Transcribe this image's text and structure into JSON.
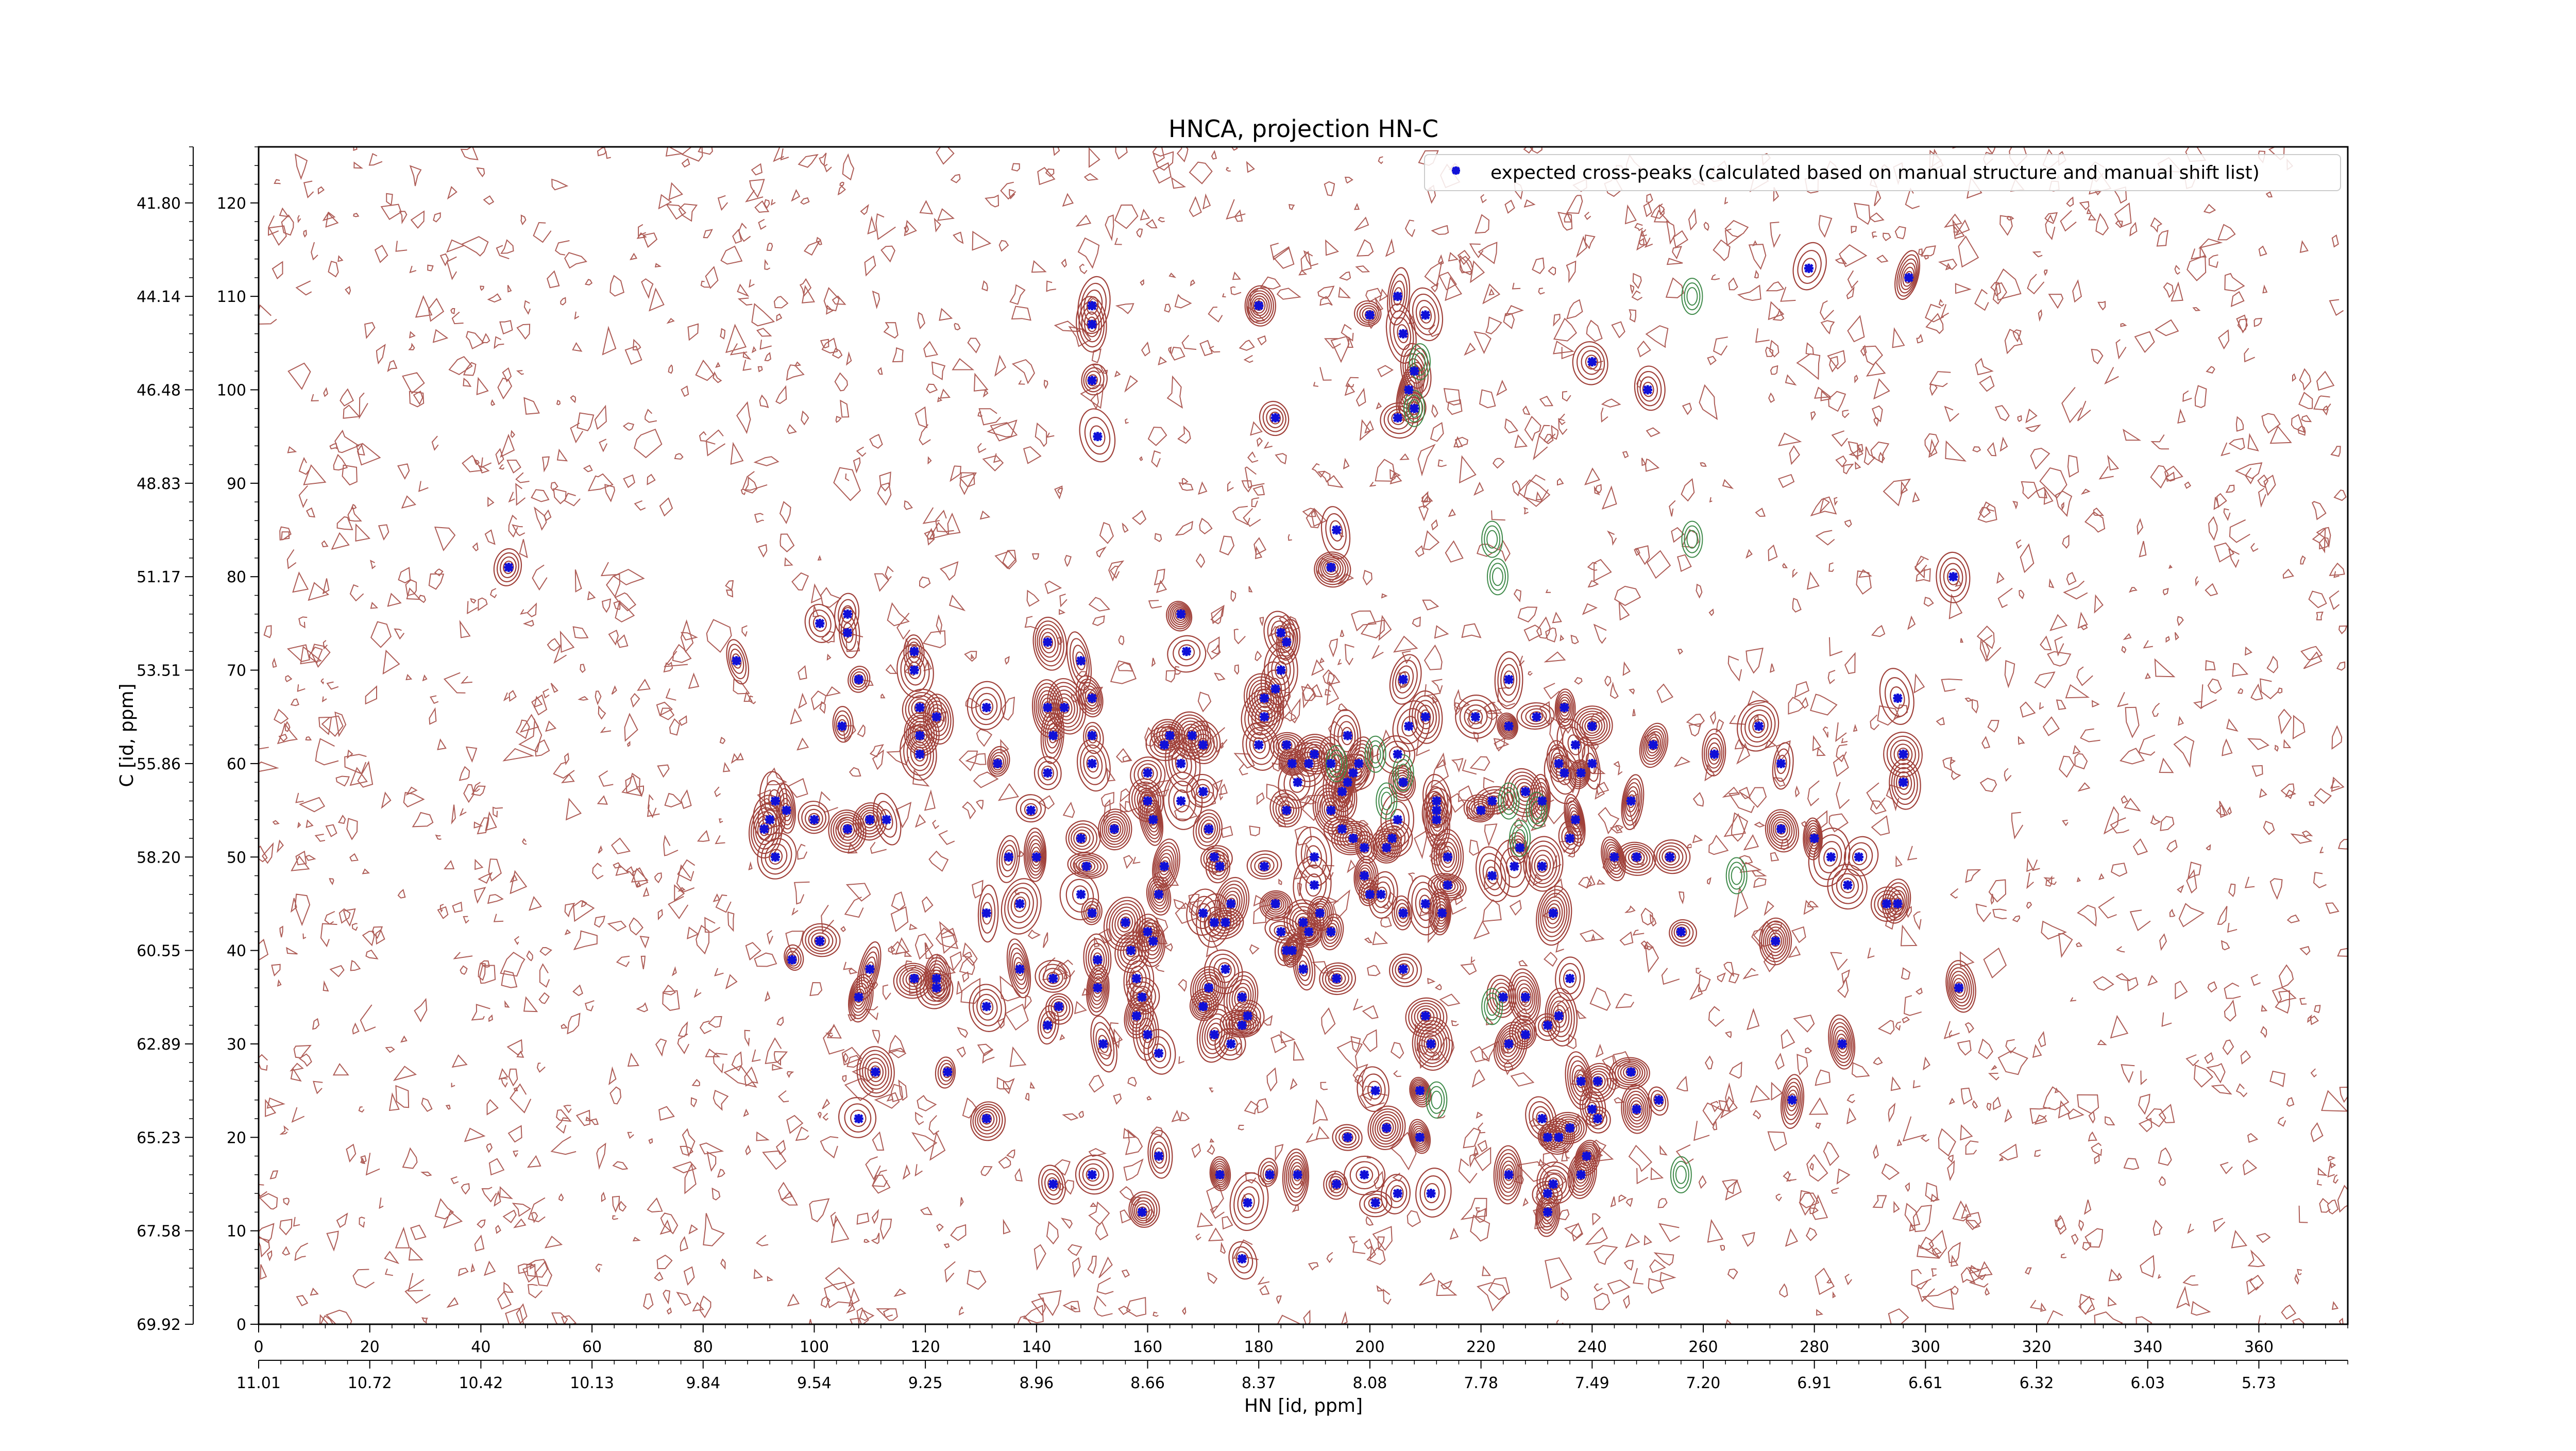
{
  "chart_data": {
    "type": "scatter",
    "title": "HNCA, projection HN-C",
    "xlabel": "HN [id, ppm]",
    "ylabel": "C [id, ppm]",
    "x_index_ticks": [
      "0",
      "20",
      "40",
      "60",
      "80",
      "100",
      "120",
      "140",
      "160",
      "180",
      "200",
      "220",
      "240",
      "260",
      "280",
      "300",
      "320",
      "340",
      "360"
    ],
    "x_ppm_ticks": [
      "11.01",
      "10.72",
      "10.42",
      "10.13",
      "9.84",
      "9.54",
      "9.25",
      "8.96",
      "8.66",
      "8.37",
      "8.08",
      "7.78",
      "7.49",
      "7.20",
      "6.91",
      "6.61",
      "6.32",
      "6.03",
      "5.73"
    ],
    "y_index_ticks": [
      "0",
      "10",
      "20",
      "30",
      "40",
      "50",
      "60",
      "70",
      "80",
      "90",
      "100",
      "110",
      "120"
    ],
    "y_ppm_ticks": [
      "69.92",
      "67.58",
      "65.23",
      "62.89",
      "60.55",
      "58.20",
      "55.86",
      "53.51",
      "51.17",
      "48.83",
      "46.48",
      "44.14",
      "41.80"
    ],
    "xlim": [
      0,
      376
    ],
    "ylim": [
      0,
      126
    ],
    "legend": {
      "label": "expected cross-peaks (calculated based on manual structure and manual shift list)",
      "position": "top-right"
    },
    "contour_colors": {
      "positive": "#a0413a",
      "negative": "#3f8a4a"
    },
    "marker_color": "#1010d8",
    "series": [
      {
        "name": "expected cross-peaks (calculated based on manual structure and manual shift list)",
        "points": [
          [
            45,
            81
          ],
          [
            86,
            71
          ],
          [
            91,
            53
          ],
          [
            92,
            54
          ],
          [
            93,
            56
          ],
          [
            95,
            55
          ],
          [
            93,
            50
          ],
          [
            100,
            54
          ],
          [
            96,
            39
          ],
          [
            101,
            41
          ],
          [
            101,
            75
          ],
          [
            106,
            76
          ],
          [
            106,
            74
          ],
          [
            108,
            69
          ],
          [
            105,
            64
          ],
          [
            106,
            53
          ],
          [
            110,
            54
          ],
          [
            113,
            54
          ],
          [
            110,
            38
          ],
          [
            108,
            35
          ],
          [
            111,
            27
          ],
          [
            108,
            22
          ],
          [
            118,
            72
          ],
          [
            118,
            70
          ],
          [
            119,
            66
          ],
          [
            119,
            63
          ],
          [
            119,
            61
          ],
          [
            118,
            37
          ],
          [
            122,
            37
          ],
          [
            122,
            36
          ],
          [
            124,
            27
          ],
          [
            122,
            65
          ],
          [
            131,
            66
          ],
          [
            133,
            60
          ],
          [
            131,
            44
          ],
          [
            135,
            50
          ],
          [
            131,
            34
          ],
          [
            131,
            22
          ],
          [
            142,
            73
          ],
          [
            142,
            66
          ],
          [
            143,
            63
          ],
          [
            145,
            66
          ],
          [
            142,
            59
          ],
          [
            139,
            55
          ],
          [
            140,
            50
          ],
          [
            137,
            45
          ],
          [
            137,
            38
          ],
          [
            143,
            37
          ],
          [
            144,
            34
          ],
          [
            142,
            32
          ],
          [
            143,
            15
          ],
          [
            148,
            71
          ],
          [
            150,
            67
          ],
          [
            150,
            63
          ],
          [
            150,
            60
          ],
          [
            148,
            52
          ],
          [
            149,
            49
          ],
          [
            148,
            46
          ],
          [
            150,
            44
          ],
          [
            151,
            39
          ],
          [
            151,
            36
          ],
          [
            150,
            16
          ],
          [
            152,
            30
          ],
          [
            151,
            95
          ],
          [
            150,
            109
          ],
          [
            150,
            107
          ],
          [
            150,
            101
          ],
          [
            154,
            53
          ],
          [
            156,
            43
          ],
          [
            157,
            40
          ],
          [
            160,
            42
          ],
          [
            162,
            46
          ],
          [
            163,
            49
          ],
          [
            161,
            41
          ],
          [
            158,
            37
          ],
          [
            159,
            35
          ],
          [
            158,
            33
          ],
          [
            160,
            31
          ],
          [
            162,
            29
          ],
          [
            160,
            59
          ],
          [
            163,
            62
          ],
          [
            160,
            56
          ],
          [
            161,
            54
          ],
          [
            164,
            63
          ],
          [
            166,
            56
          ],
          [
            166,
            60
          ],
          [
            166,
            76
          ],
          [
            162,
            18
          ],
          [
            159,
            12
          ],
          [
            167,
            72
          ],
          [
            168,
            63
          ],
          [
            170,
            62
          ],
          [
            170,
            57
          ],
          [
            171,
            53
          ],
          [
            172,
            50
          ],
          [
            173,
            49
          ],
          [
            170,
            44
          ],
          [
            172,
            43
          ],
          [
            174,
            43
          ],
          [
            174,
            38
          ],
          [
            175,
            45
          ],
          [
            171,
            36
          ],
          [
            170,
            34
          ],
          [
            173,
            16
          ],
          [
            172,
            31
          ],
          [
            177,
            35
          ],
          [
            175,
            30
          ],
          [
            177,
            32
          ],
          [
            178,
            33
          ],
          [
            181,
            49
          ],
          [
            181,
            65
          ],
          [
            181,
            67
          ],
          [
            183,
            68
          ],
          [
            184,
            70
          ],
          [
            185,
            73
          ],
          [
            185,
            55
          ],
          [
            186,
            60
          ],
          [
            183,
            45
          ],
          [
            184,
            42
          ],
          [
            185,
            40
          ],
          [
            186,
            40
          ],
          [
            188,
            43
          ],
          [
            188,
            38
          ],
          [
            189,
            42
          ],
          [
            187,
            16
          ],
          [
            182,
            16
          ],
          [
            178,
            13
          ],
          [
            177,
            7
          ],
          [
            180,
            109
          ],
          [
            183,
            97
          ],
          [
            184,
            74
          ],
          [
            180,
            62
          ],
          [
            185,
            62
          ],
          [
            187,
            58
          ],
          [
            189,
            60
          ],
          [
            190,
            61
          ],
          [
            190,
            50
          ],
          [
            190,
            47
          ],
          [
            191,
            44
          ],
          [
            193,
            42
          ],
          [
            194,
            37
          ],
          [
            193,
            55
          ],
          [
            193,
            60
          ],
          [
            195,
            57
          ],
          [
            196,
            63
          ],
          [
            197,
            59
          ],
          [
            198,
            60
          ],
          [
            196,
            58
          ],
          [
            195,
            53
          ],
          [
            197,
            52
          ],
          [
            199,
            51
          ],
          [
            199,
            48
          ],
          [
            200,
            46
          ],
          [
            202,
            46
          ],
          [
            203,
            51
          ],
          [
            204,
            52
          ],
          [
            205,
            54
          ],
          [
            206,
            58
          ],
          [
            206,
            44
          ],
          [
            206,
            38
          ],
          [
            205,
            61
          ],
          [
            207,
            64
          ],
          [
            206,
            69
          ],
          [
            210,
            65
          ],
          [
            212,
            56
          ],
          [
            212,
            54
          ],
          [
            214,
            50
          ],
          [
            214,
            47
          ],
          [
            213,
            44
          ],
          [
            210,
            45
          ],
          [
            211,
            30
          ],
          [
            210,
            33
          ],
          [
            209,
            25
          ],
          [
            209,
            20
          ],
          [
            211,
            14
          ],
          [
            196,
            20
          ],
          [
            199,
            16
          ],
          [
            201,
            13
          ],
          [
            203,
            21
          ],
          [
            205,
            14
          ],
          [
            201,
            25
          ],
          [
            194,
            15
          ],
          [
            194,
            85
          ],
          [
            193,
            81
          ],
          [
            200,
            108
          ],
          [
            205,
            110
          ],
          [
            206,
            106
          ],
          [
            207,
            100
          ],
          [
            205,
            97
          ],
          [
            208,
            98
          ],
          [
            208,
            102
          ],
          [
            210,
            108
          ],
          [
            212,
            55
          ],
          [
            222,
            56
          ],
          [
            228,
            57
          ],
          [
            227,
            51
          ],
          [
            231,
            56
          ],
          [
            235,
            59
          ],
          [
            240,
            60
          ],
          [
            234,
            60
          ],
          [
            231,
            49
          ],
          [
            233,
            44
          ],
          [
            226,
            49
          ],
          [
            222,
            48
          ],
          [
            225,
            64
          ],
          [
            219,
            65
          ],
          [
            220,
            55
          ],
          [
            225,
            69
          ],
          [
            230,
            65
          ],
          [
            235,
            66
          ],
          [
            240,
            64
          ],
          [
            237,
            62
          ],
          [
            236,
            52
          ],
          [
            237,
            54
          ],
          [
            238,
            59
          ],
          [
            244,
            50
          ],
          [
            247,
            56
          ],
          [
            248,
            50
          ],
          [
            251,
            62
          ],
          [
            254,
            50
          ],
          [
            228,
            35
          ],
          [
            232,
            32
          ],
          [
            234,
            33
          ],
          [
            224,
            35
          ],
          [
            225,
            30
          ],
          [
            228,
            31
          ],
          [
            232,
            20
          ],
          [
            234,
            20
          ],
          [
            231,
            22
          ],
          [
            236,
            21
          ],
          [
            241,
            26
          ],
          [
            240,
            23
          ],
          [
            241,
            22
          ],
          [
            239,
            18
          ],
          [
            225,
            16
          ],
          [
            232,
            12
          ],
          [
            232,
            14
          ],
          [
            233,
            15
          ],
          [
            238,
            16
          ],
          [
            236,
            37
          ],
          [
            238,
            26
          ],
          [
            247,
            27
          ],
          [
            248,
            23
          ],
          [
            252,
            24
          ],
          [
            256,
            42
          ],
          [
            262,
            61
          ],
          [
            270,
            64
          ],
          [
            274,
            60
          ],
          [
            274,
            53
          ],
          [
            280,
            52
          ],
          [
            283,
            50
          ],
          [
            286,
            47
          ],
          [
            288,
            50
          ],
          [
            273,
            41
          ],
          [
            276,
            24
          ],
          [
            285,
            30
          ],
          [
            293,
            45
          ],
          [
            296,
            61
          ],
          [
            295,
            45
          ],
          [
            295,
            67
          ],
          [
            296,
            58
          ],
          [
            305,
            80
          ],
          [
            306,
            36
          ],
          [
            297,
            112
          ],
          [
            279,
            113
          ],
          [
            250,
            100
          ],
          [
            240,
            103
          ]
        ]
      }
    ]
  }
}
